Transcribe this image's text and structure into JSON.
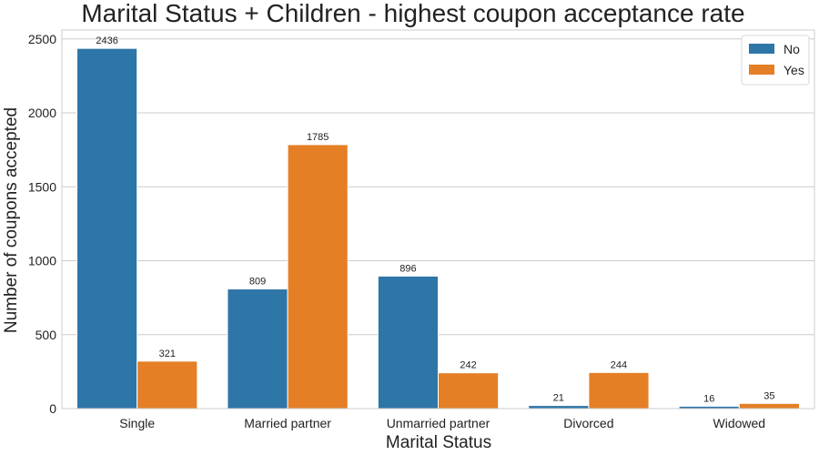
{
  "chart_data": {
    "type": "bar",
    "title": "Marital Status + Children - highest coupon acceptance rate",
    "xlabel": "Marital Status",
    "ylabel": "Number of coupons accepted",
    "categories": [
      "Single",
      "Married partner",
      "Unmarried partner",
      "Divorced",
      "Widowed"
    ],
    "series": [
      {
        "name": "No",
        "color": "#2e75a8",
        "values": [
          2436,
          809,
          896,
          21,
          16
        ]
      },
      {
        "name": "Yes",
        "color": "#e47f26",
        "values": [
          321,
          1785,
          242,
          244,
          35
        ]
      }
    ],
    "ylim": [
      0,
      2560
    ],
    "yticks": [
      0,
      500,
      1000,
      1500,
      2000,
      2500
    ],
    "grid": true,
    "legend_position": "top-right"
  }
}
